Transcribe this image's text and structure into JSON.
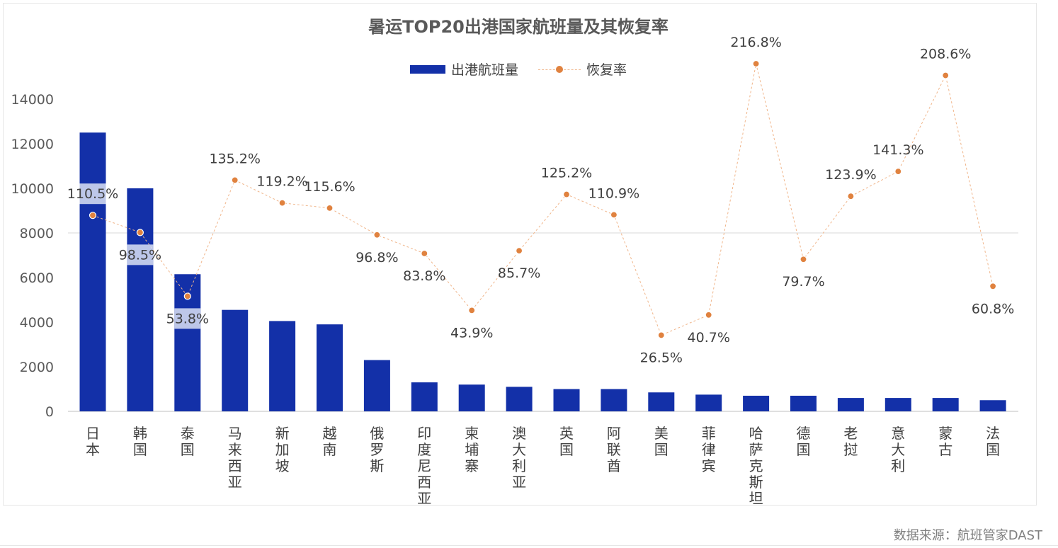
{
  "colors": {
    "bar": "#1330a8",
    "marker": "#e0823f",
    "line": "#f0b58a",
    "highlight": "rgba(220,226,245,0.85)"
  },
  "legend": {
    "bar_label": "出港航班量",
    "line_label": "恢复率"
  },
  "source": "数据来源：航班管家DAST",
  "chart_data": {
    "type": "bar",
    "title": "暑运TOP20出港国家航班量及其恢复率",
    "categories": [
      "日本",
      "韩国",
      "泰国",
      "马来西亚",
      "新加坡",
      "越南",
      "俄罗斯",
      "印度尼西亚",
      "柬埔寨",
      "澳大利亚",
      "英国",
      "阿联酋",
      "美国",
      "菲律宾",
      "哈萨克斯坦",
      "德国",
      "老挝",
      "意大利",
      "蒙古",
      "法国"
    ],
    "ylim": [
      0,
      14000
    ],
    "yticks": [
      0,
      2000,
      4000,
      6000,
      8000,
      10000,
      12000,
      14000
    ],
    "series": [
      {
        "name": "出港航班量",
        "type": "bar",
        "values": [
          12500,
          10000,
          6150,
          4550,
          4050,
          3900,
          2300,
          1300,
          1200,
          1100,
          1000,
          1000,
          850,
          750,
          700,
          700,
          600,
          600,
          600,
          500
        ]
      },
      {
        "name": "恢复率",
        "type": "line",
        "values": [
          110.5,
          98.5,
          53.8,
          135.2,
          119.2,
          115.6,
          96.8,
          83.8,
          43.9,
          85.7,
          125.2,
          110.9,
          26.5,
          40.7,
          216.8,
          79.7,
          123.9,
          141.3,
          208.6,
          60.8
        ],
        "labels": [
          "110.5%",
          "98.5%",
          "53.8%",
          "135.2%",
          "119.2%",
          "115.6%",
          "96.8%",
          "83.8%",
          "43.9%",
          "85.7%",
          "125.2%",
          "110.9%",
          "26.5%",
          "40.7%",
          "216.8%",
          "79.7%",
          "123.9%",
          "141.3%",
          "208.6%",
          "60.8%"
        ],
        "label_pos": [
          "above",
          "below",
          "below",
          "above",
          "above",
          "above",
          "below",
          "below",
          "below",
          "below",
          "above",
          "above",
          "below",
          "below",
          "above",
          "below",
          "above",
          "above",
          "above",
          "below"
        ]
      }
    ],
    "grid": "single horizontal line at 8000",
    "legend_position": "top"
  }
}
